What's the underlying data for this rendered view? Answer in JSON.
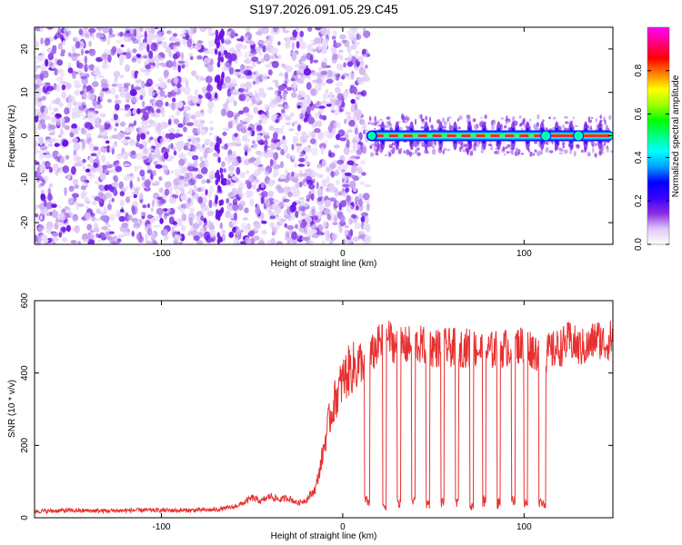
{
  "title": "S197.2026.091.05.29.C45",
  "chart_data": [
    {
      "type": "heatmap",
      "xlabel": "Height of straight line (km)",
      "ylabel": "Frequency (Hz)",
      "xlim": [
        -170,
        149
      ],
      "ylim": [
        -25,
        25
      ],
      "xticks": [
        -100,
        0,
        100
      ],
      "xtick_labels": [
        "-100",
        "0",
        "100"
      ],
      "yticks": [
        -20,
        -10,
        0,
        10,
        20
      ],
      "ytick_labels": [
        "-20",
        "-10",
        "0",
        "10",
        "20"
      ],
      "noise_region_x": [
        -170,
        14
      ],
      "carrier_freq_hz": 0,
      "carrier_x_range": [
        14,
        149
      ],
      "carrier_peaks_x": [
        22,
        30,
        38,
        46,
        54,
        62,
        70,
        78,
        86,
        94,
        102,
        110,
        118,
        126,
        134,
        142
      ],
      "colorbar": {
        "label": "Normalized spectral amplitude",
        "range": [
          0,
          1
        ],
        "ticks": [
          0.0,
          0.2,
          0.4,
          0.6,
          0.8
        ],
        "tick_labels": [
          "0.0",
          "0.2",
          "0.4",
          "0.6",
          "0.8"
        ],
        "colors": [
          "#ffffff",
          "#e0c8f8",
          "#8a2be2",
          "#3a00ff",
          "#0000ff",
          "#00a0ff",
          "#00ffff",
          "#00ff80",
          "#00ff00",
          "#a0ff00",
          "#ffff00",
          "#ff8000",
          "#ff0000",
          "#ff0080",
          "#ff00ff"
        ]
      }
    },
    {
      "type": "line",
      "xlabel": "Height of straight line (km)",
      "ylabel": "SNR (10 * v/v)",
      "xlim": [
        -170,
        149
      ],
      "ylim": [
        0,
        600
      ],
      "xticks": [
        -100,
        0,
        100
      ],
      "xtick_labels": [
        "-100",
        "0",
        "100"
      ],
      "yticks": [
        0,
        200,
        400,
        600
      ],
      "ytick_labels": [
        "0",
        "200",
        "400",
        "600"
      ],
      "line_color": "#e8302f",
      "series": [
        {
          "name": "SNR",
          "x": [
            -170,
            -150,
            -130,
            -110,
            -90,
            -70,
            -60,
            -55,
            -50,
            -45,
            -40,
            -35,
            -30,
            -25,
            -20,
            -15,
            -12,
            -8,
            -4,
            0,
            4,
            8,
            12,
            16,
            20,
            25,
            30,
            40,
            50,
            60,
            70,
            80,
            90,
            100,
            110,
            115,
            120,
            125,
            130,
            135,
            140,
            145,
            149
          ],
          "y": [
            18,
            20,
            19,
            21,
            20,
            22,
            30,
            40,
            55,
            45,
            60,
            50,
            55,
            40,
            50,
            80,
            150,
            260,
            330,
            380,
            410,
            420,
            430,
            450,
            480,
            500,
            470,
            480,
            470,
            470,
            470,
            460,
            470,
            480,
            450,
            460,
            470,
            490,
            470,
            470,
            500,
            480,
            500
          ]
        }
      ],
      "dropouts": [
        {
          "x": [
            12,
            15
          ],
          "y": 45
        },
        {
          "x": [
            22,
            24
          ],
          "y": 35
        },
        {
          "x": [
            30,
            32
          ],
          "y": 40
        },
        {
          "x": [
            38,
            40
          ],
          "y": 45
        },
        {
          "x": [
            46,
            48
          ],
          "y": 40
        },
        {
          "x": [
            54,
            56
          ],
          "y": 40
        },
        {
          "x": [
            62,
            64
          ],
          "y": 40
        },
        {
          "x": [
            70,
            72
          ],
          "y": 35
        },
        {
          "x": [
            77,
            79
          ],
          "y": 45
        },
        {
          "x": [
            85,
            87
          ],
          "y": 40
        },
        {
          "x": [
            93,
            95
          ],
          "y": 45
        },
        {
          "x": [
            100,
            102
          ],
          "y": 40
        },
        {
          "x": [
            108,
            112
          ],
          "y": 40
        }
      ]
    }
  ]
}
